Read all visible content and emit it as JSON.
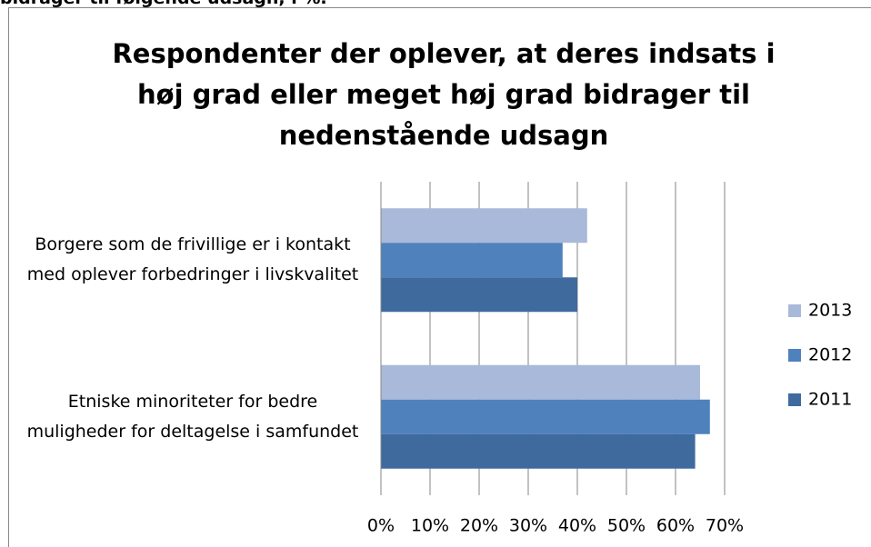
{
  "heading": "bidrager til følgende udsagn, i %.",
  "chart_data": {
    "type": "bar",
    "orientation": "horizontal",
    "title": "Respondenter der oplever, at deres indsats i høj grad eller meget høj grad bidrager til nedenstående udsagn",
    "categories": [
      "Borgere som de frivillige er i kontakt med oplever forbedringer i livskvalitet",
      "Etniske minoriteter for bedre muligheder for deltagelse i samfundet"
    ],
    "series": [
      {
        "name": "2013",
        "color": "#a9b9d9",
        "values": [
          42,
          65
        ]
      },
      {
        "name": "2012",
        "color": "#4f81bd",
        "values": [
          37,
          67
        ]
      },
      {
        "name": "2011",
        "color": "#3f6a9e",
        "values": [
          40,
          64
        ]
      }
    ],
    "xlim": [
      0,
      70
    ],
    "xticks": [
      {
        "value": 0,
        "label": "0%"
      },
      {
        "value": 10,
        "label": "10%"
      },
      {
        "value": 20,
        "label": "20%"
      },
      {
        "value": 30,
        "label": "30%"
      },
      {
        "value": 40,
        "label": "40%"
      },
      {
        "value": 50,
        "label": "50%"
      },
      {
        "value": 60,
        "label": "60%"
      },
      {
        "value": 70,
        "label": "70%"
      }
    ],
    "grid": true,
    "legend": "right"
  }
}
